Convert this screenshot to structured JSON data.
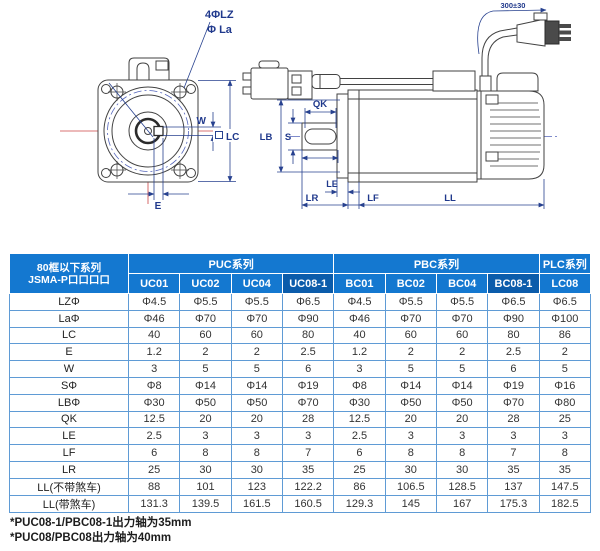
{
  "diagram": {
    "labels": {
      "bolt_holes": "4ΦLZ",
      "bolt_circle": "Φ La",
      "key_width": "W",
      "frame_size": "LC",
      "key_offset": "E",
      "key_length": "QK",
      "shaft_dia": "S",
      "pilot_dia": "LB",
      "le": "LE",
      "lr": "LR",
      "lf": "LF",
      "ll": "LL",
      "cable_length": "300±30"
    },
    "colors": {
      "outline": "#424242",
      "dimension": "#27418f",
      "centerline_red": "#cc4444",
      "centerline_blue": "#5566bb"
    }
  },
  "table": {
    "corner_header": [
      "80框以下系列",
      "JSMA-P口口口口"
    ],
    "groups": [
      {
        "label": "PUC系列",
        "span": 4
      },
      {
        "label": "PBC系列",
        "span": 4
      },
      {
        "label": "PLC系列",
        "span": 1
      }
    ],
    "models": [
      {
        "label": "UC01",
        "dark": false
      },
      {
        "label": "UC02",
        "dark": false
      },
      {
        "label": "UC04",
        "dark": false
      },
      {
        "label": "UC08-1",
        "dark": true
      },
      {
        "label": "BC01",
        "dark": false
      },
      {
        "label": "BC02",
        "dark": false
      },
      {
        "label": "BC04",
        "dark": false
      },
      {
        "label": "BC08-1",
        "dark": true
      },
      {
        "label": "LC08",
        "dark": false
      }
    ],
    "rows": [
      {
        "label": "LZΦ",
        "values": [
          "Φ4.5",
          "Φ5.5",
          "Φ5.5",
          "Φ6.5",
          "Φ4.5",
          "Φ5.5",
          "Φ5.5",
          "Φ6.5",
          "Φ6.5"
        ]
      },
      {
        "label": "LaΦ",
        "values": [
          "Φ46",
          "Φ70",
          "Φ70",
          "Φ90",
          "Φ46",
          "Φ70",
          "Φ70",
          "Φ90",
          "Φ100"
        ]
      },
      {
        "label": "LC",
        "values": [
          "40",
          "60",
          "60",
          "80",
          "40",
          "60",
          "60",
          "80",
          "86"
        ]
      },
      {
        "label": "E",
        "values": [
          "1.2",
          "2",
          "2",
          "2.5",
          "1.2",
          "2",
          "2",
          "2.5",
          "2"
        ]
      },
      {
        "label": "W",
        "values": [
          "3",
          "5",
          "5",
          "6",
          "3",
          "5",
          "5",
          "6",
          "5"
        ]
      },
      {
        "label": "SΦ",
        "values": [
          "Φ8",
          "Φ14",
          "Φ14",
          "Φ19",
          "Φ8",
          "Φ14",
          "Φ14",
          "Φ19",
          "Φ16"
        ]
      },
      {
        "label": "LBΦ",
        "values": [
          "Φ30",
          "Φ50",
          "Φ50",
          "Φ70",
          "Φ30",
          "Φ50",
          "Φ50",
          "Φ70",
          "Φ80"
        ]
      },
      {
        "label": "QK",
        "values": [
          "12.5",
          "20",
          "20",
          "28",
          "12.5",
          "20",
          "20",
          "28",
          "25"
        ]
      },
      {
        "label": "LE",
        "values": [
          "2.5",
          "3",
          "3",
          "3",
          "2.5",
          "3",
          "3",
          "3",
          "3"
        ]
      },
      {
        "label": "LF",
        "values": [
          "6",
          "8",
          "8",
          "7",
          "6",
          "8",
          "8",
          "7",
          "8"
        ]
      },
      {
        "label": "LR",
        "values": [
          "25",
          "30",
          "30",
          "35",
          "25",
          "30",
          "30",
          "35",
          "35"
        ]
      },
      {
        "label": "LL(不带煞车)",
        "values": [
          "88",
          "101",
          "123",
          "122.2",
          "86",
          "106.5",
          "128.5",
          "137",
          "147.5"
        ]
      },
      {
        "label": "LL(带煞车)",
        "values": [
          "131.3",
          "139.5",
          "161.5",
          "160.5",
          "129.3",
          "145",
          "167",
          "175.3",
          "182.5"
        ]
      }
    ],
    "colors": {
      "header_bg": "#1478d0",
      "header_dark_bg": "#0b5cab",
      "grid": "#5f9bd5",
      "text": "#333333"
    }
  },
  "footnotes": [
    "*PUC08-1/PBC08-1出力轴为35mm",
    "*PUC08/PBC08出力轴为40mm"
  ]
}
